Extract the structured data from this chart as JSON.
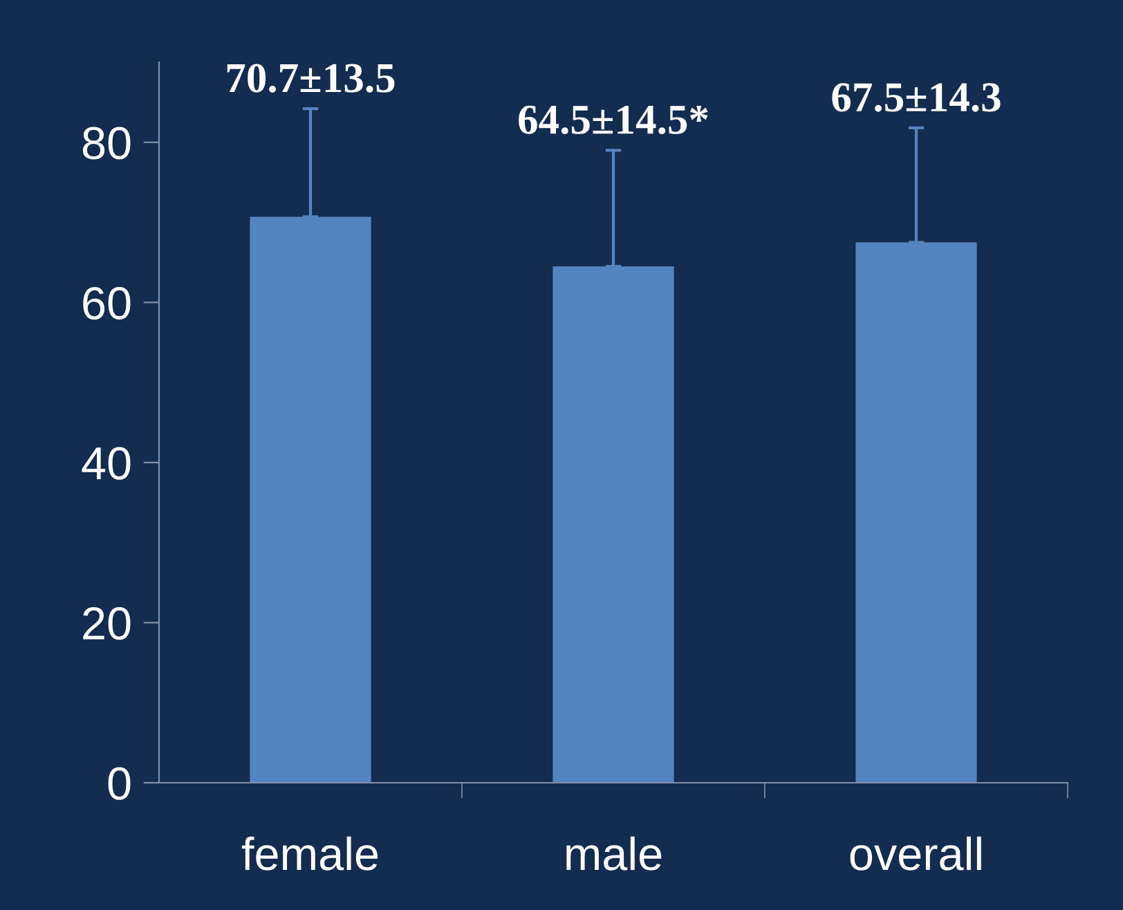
{
  "chart_data": {
    "type": "bar",
    "categories": [
      "female",
      "male",
      "overall"
    ],
    "values": [
      70.7,
      64.5,
      67.5
    ],
    "errors": [
      [
        70.7,
        84.2
      ],
      [
        64.5,
        79.0
      ],
      [
        67.5,
        81.8
      ]
    ],
    "value_labels": [
      "70.7±13.5",
      "64.5±14.5*",
      "67.5±14.3"
    ],
    "color": "#5585c0",
    "ylim": [
      0,
      90
    ],
    "yticks": [
      0,
      20,
      40,
      60,
      80
    ],
    "grid": false,
    "legend": false
  }
}
